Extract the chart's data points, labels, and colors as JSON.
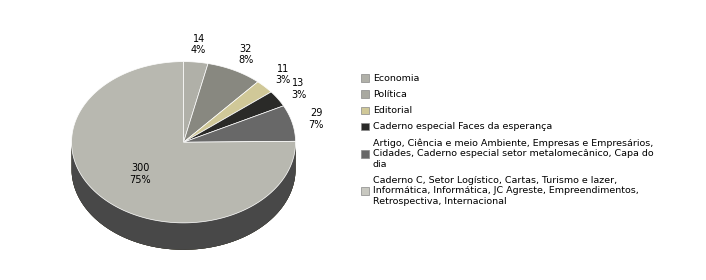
{
  "values": [
    14,
    32,
    11,
    13,
    29,
    300
  ],
  "labels": [
    "14\n4%",
    "32\n8%",
    "11\n3%",
    "13\n3%",
    "29\n7%",
    "300\n75%"
  ],
  "pie_colors": [
    "#b0b0a8",
    "#888880",
    "#d0c898",
    "#2a2a28",
    "#686868",
    "#b8b8b0"
  ],
  "pie_shadow_colors": [
    "#888880",
    "#606058",
    "#a8a078",
    "#1a1a18",
    "#484848",
    "#909090"
  ],
  "legend_labels": [
    "Economia",
    "Política",
    "Editorial",
    "Caderno especial Faces da esperança",
    "Artigo, Ciência e meio Ambiente, Empresas e Empresários,\nCidades, Caderno especial setor metalomecânico, Capa do\ndia",
    "Caderno C, Setor Logístico, Cartas, Turismo e lazer,\nInformática, Informática, JC Agreste, Empreendimentos,\nRetrospectiva, Internacional"
  ],
  "background_color": "#ffffff",
  "startangle": 90,
  "depth": 0.12
}
